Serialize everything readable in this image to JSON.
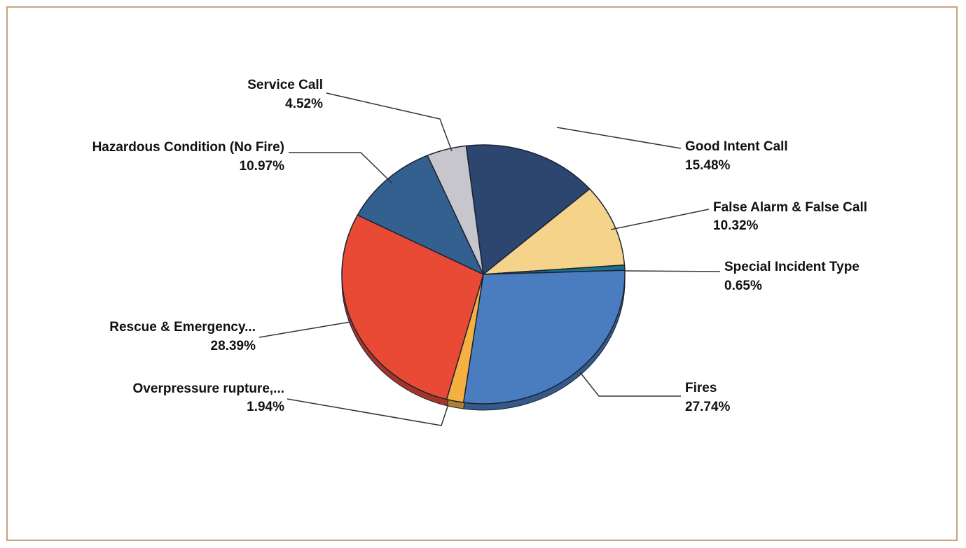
{
  "chart_data": {
    "type": "pie",
    "title": "",
    "slices": [
      {
        "label": "Good Intent Call",
        "percent_label": "15.48%",
        "value": 15.48,
        "color": "#2c4670"
      },
      {
        "label": "False Alarm & False Call",
        "percent_label": "10.32%",
        "value": 10.32,
        "color": "#f6d38a"
      },
      {
        "label": "Special Incident Type",
        "percent_label": "0.65%",
        "value": 0.65,
        "color": "#1f6f8b"
      },
      {
        "label": "Fires",
        "percent_label": "27.74%",
        "value": 27.74,
        "color": "#4a7dc0"
      },
      {
        "label": "Overpressure rupture,...",
        "percent_label": "1.94%",
        "value": 1.94,
        "color": "#f5b041"
      },
      {
        "label": "Rescue & Emergency...",
        "percent_label": "28.39%",
        "value": 28.39,
        "color": "#e84a35"
      },
      {
        "label": "Hazardous Condition (No Fire)",
        "percent_label": "10.97%",
        "value": 10.97,
        "color": "#33608f"
      },
      {
        "label": "Service Call",
        "percent_label": "4.52%",
        "value": 4.52,
        "color": "#c6c6cc"
      }
    ]
  }
}
